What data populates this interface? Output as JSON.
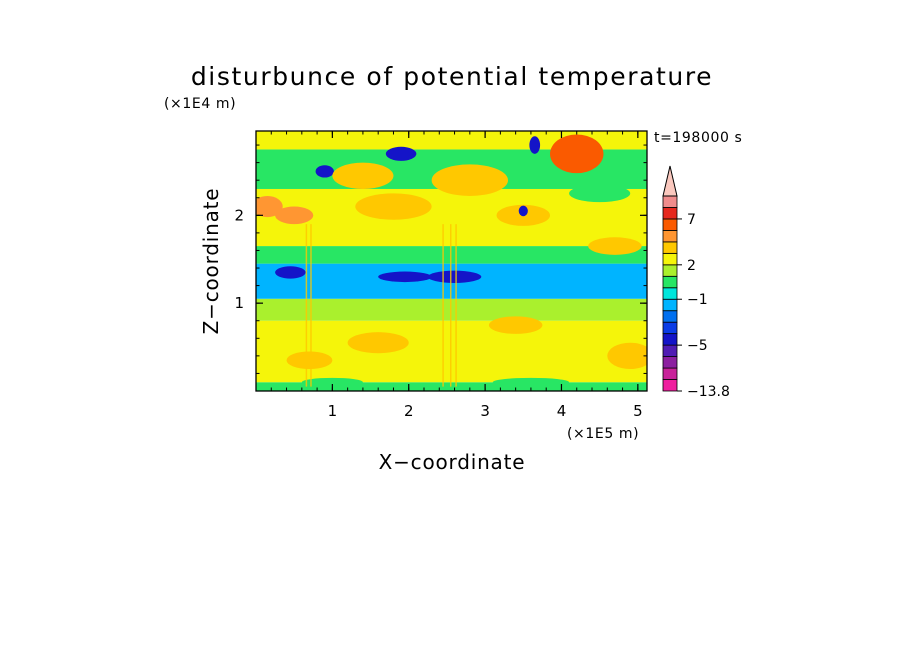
{
  "chart_data": {
    "type": "heatmap",
    "title": "disturbunce of potential temperature",
    "xlabel": "X−coordinate",
    "ylabel": "Z−coordinate",
    "x_scale_label": "(×1E5 m)",
    "y_scale_label": "(×1E4 m)",
    "time_label": "t=198000 s",
    "xlim": [
      0,
      5.12
    ],
    "ylim": [
      0,
      2.96
    ],
    "x_ticks": [
      1,
      2,
      3,
      4,
      5
    ],
    "y_ticks": [
      1,
      2
    ],
    "colorbar": {
      "min": -13.8,
      "tick_labels": [
        "7",
        "2",
        "−1",
        "−5",
        "−13.8"
      ],
      "tick_values": [
        7,
        2,
        -1,
        -5,
        -13.8
      ],
      "levels": [
        {
          "to": -9,
          "color": "#ef1e9e"
        },
        {
          "from": -9,
          "to": -7,
          "color": "#c8229a"
        },
        {
          "from": -7,
          "to": -6,
          "color": "#8c1fa0"
        },
        {
          "from": -6,
          "to": -5,
          "color": "#501cb4"
        },
        {
          "from": -5,
          "to": -4,
          "color": "#1414c8"
        },
        {
          "from": -4,
          "to": -3,
          "color": "#0a3ce6"
        },
        {
          "from": -3,
          "to": -2,
          "color": "#0070f0"
        },
        {
          "from": -2,
          "to": -1,
          "color": "#00b4ff"
        },
        {
          "from": -1,
          "to": 0,
          "color": "#00e6dc"
        },
        {
          "from": 0,
          "to": 1,
          "color": "#28e664"
        },
        {
          "from": 1,
          "to": 2,
          "color": "#aaf02d"
        },
        {
          "from": 2,
          "to": 3,
          "color": "#f5f50a"
        },
        {
          "from": 3,
          "to": 4,
          "color": "#ffc800"
        },
        {
          "from": 4,
          "to": 5,
          "color": "#ff9632"
        },
        {
          "from": 5,
          "to": 7,
          "color": "#fa5a00"
        },
        {
          "from": 7,
          "to": 9,
          "color": "#e6281e"
        },
        {
          "from": 9,
          "to": 11,
          "color": "#f08c8c"
        },
        {
          "from": 11,
          "color": "#fac8be"
        }
      ],
      "extend": "max"
    },
    "dominant_bands": [
      {
        "z_range": [
          0,
          0.1
        ],
        "value": 0.5
      },
      {
        "z_range": [
          0.1,
          0.8
        ],
        "value": 2.5
      },
      {
        "z_range": [
          0.8,
          1.05
        ],
        "value": 1.5
      },
      {
        "z_range": [
          1.05,
          1.45
        ],
        "value": -1.5
      },
      {
        "z_range": [
          1.45,
          1.65
        ],
        "value": 0.5
      },
      {
        "z_range": [
          1.65,
          2.3
        ],
        "value": 2.5
      },
      {
        "z_range": [
          2.3,
          2.75
        ],
        "value": 0.5
      },
      {
        "z_range": [
          2.75,
          2.96
        ],
        "value": 2.5
      }
    ],
    "features": [
      {
        "x": 0.15,
        "z": 2.1,
        "value": 4.5,
        "rx": 0.2,
        "rz": 0.12
      },
      {
        "x": 0.5,
        "z": 2.0,
        "value": 4.5,
        "rx": 0.25,
        "rz": 0.1
      },
      {
        "x": 0.45,
        "z": 1.35,
        "value": -4.5,
        "rx": 0.2,
        "rz": 0.07
      },
      {
        "x": 0.9,
        "z": 2.5,
        "value": -4.5,
        "rx": 0.12,
        "rz": 0.07
      },
      {
        "x": 0.7,
        "z": 0.35,
        "value": 3.5,
        "rx": 0.3,
        "rz": 0.1
      },
      {
        "x": 1.4,
        "z": 2.45,
        "value": 3.5,
        "rx": 0.4,
        "rz": 0.15
      },
      {
        "x": 1.9,
        "z": 2.7,
        "value": -4.5,
        "rx": 0.2,
        "rz": 0.08
      },
      {
        "x": 1.8,
        "z": 2.1,
        "value": 3.5,
        "rx": 0.5,
        "rz": 0.15
      },
      {
        "x": 1.95,
        "z": 1.3,
        "value": -4.5,
        "rx": 0.35,
        "rz": 0.06
      },
      {
        "x": 2.6,
        "z": 1.3,
        "value": -4.5,
        "rx": 0.35,
        "rz": 0.07
      },
      {
        "x": 2.8,
        "z": 2.4,
        "value": 3.5,
        "rx": 0.5,
        "rz": 0.18
      },
      {
        "x": 3.5,
        "z": 2.0,
        "value": 3.5,
        "rx": 0.35,
        "rz": 0.12
      },
      {
        "x": 3.5,
        "z": 2.05,
        "value": -4.5,
        "rx": 0.06,
        "rz": 0.06
      },
      {
        "x": 3.65,
        "z": 2.8,
        "value": -4.5,
        "rx": 0.07,
        "rz": 0.1
      },
      {
        "x": 4.2,
        "z": 2.7,
        "value": 6.0,
        "rx": 0.35,
        "rz": 0.22
      },
      {
        "x": 4.5,
        "z": 2.25,
        "value": 0.5,
        "rx": 0.4,
        "rz": 0.1
      },
      {
        "x": 4.7,
        "z": 1.65,
        "value": 3.5,
        "rx": 0.35,
        "rz": 0.1
      },
      {
        "x": 1.6,
        "z": 0.55,
        "value": 3.5,
        "rx": 0.4,
        "rz": 0.12
      },
      {
        "x": 3.4,
        "z": 0.75,
        "value": 3.5,
        "rx": 0.35,
        "rz": 0.1
      },
      {
        "x": 4.9,
        "z": 0.4,
        "value": 3.5,
        "rx": 0.3,
        "rz": 0.15
      },
      {
        "x": 1.0,
        "z": 0.1,
        "value": 0.5,
        "rx": 0.4,
        "rz": 0.05
      },
      {
        "x": 3.6,
        "z": 0.1,
        "value": 0.5,
        "rx": 0.5,
        "rz": 0.05
      }
    ]
  }
}
